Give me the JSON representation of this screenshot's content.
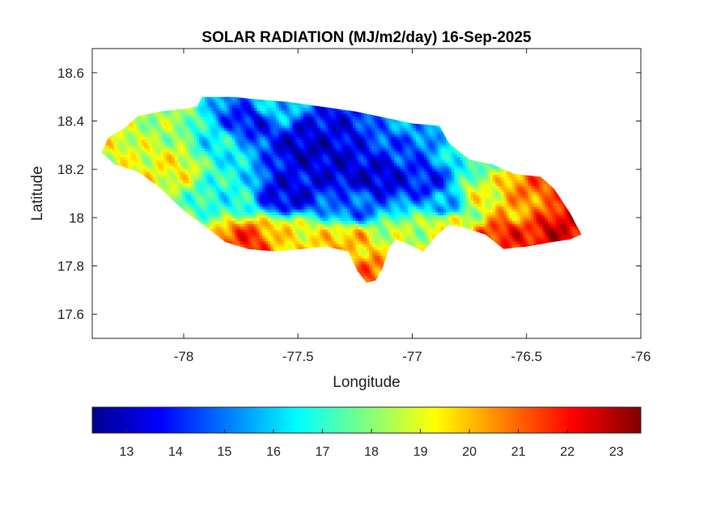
{
  "chart_data": {
    "type": "heatmap",
    "title": "SOLAR RADIATION (MJ/m2/day) 16-Sep-2025",
    "xlabel": "Longitude",
    "ylabel": "Latitude",
    "xlim": [
      -78.4,
      -76
    ],
    "ylim": [
      17.5,
      18.7
    ],
    "x_ticks": [
      -78,
      -77.5,
      -77,
      -76.5,
      -76
    ],
    "x_tick_labels": [
      "-78",
      "-77.5",
      "-77",
      "-76.5",
      "-76"
    ],
    "y_ticks": [
      17.6,
      17.8,
      18,
      18.2,
      18.4,
      18.6
    ],
    "y_tick_labels": [
      "17.6",
      "17.8",
      "18",
      "18.2",
      "18.4",
      "18.6"
    ],
    "colormap": "jet",
    "colorbar": {
      "orientation": "horizontal",
      "location": "bottom",
      "range": [
        12.3,
        23.5
      ],
      "ticks": [
        13,
        14,
        15,
        16,
        17,
        18,
        19,
        20,
        21,
        22,
        23
      ],
      "tick_labels": [
        "13",
        "14",
        "15",
        "16",
        "17",
        "18",
        "19",
        "20",
        "21",
        "22",
        "23"
      ]
    },
    "outline_lonlat": [
      [
        -78.36,
        18.27
      ],
      [
        -78.33,
        18.33
      ],
      [
        -78.26,
        18.37
      ],
      [
        -78.2,
        18.42
      ],
      [
        -78.1,
        18.44
      ],
      [
        -78.0,
        18.45
      ],
      [
        -77.94,
        18.46
      ],
      [
        -77.92,
        18.5
      ],
      [
        -77.78,
        18.5
      ],
      [
        -77.68,
        18.49
      ],
      [
        -77.55,
        18.48
      ],
      [
        -77.4,
        18.46
      ],
      [
        -77.25,
        18.44
      ],
      [
        -77.1,
        18.41
      ],
      [
        -77.0,
        18.39
      ],
      [
        -76.88,
        18.38
      ],
      [
        -76.84,
        18.31
      ],
      [
        -76.75,
        18.24
      ],
      [
        -76.65,
        18.22
      ],
      [
        -76.55,
        18.18
      ],
      [
        -76.44,
        18.17
      ],
      [
        -76.38,
        18.12
      ],
      [
        -76.31,
        18.02
      ],
      [
        -76.26,
        17.93
      ],
      [
        -76.31,
        17.91
      ],
      [
        -76.38,
        17.9
      ],
      [
        -76.5,
        17.88
      ],
      [
        -76.6,
        17.87
      ],
      [
        -76.68,
        17.93
      ],
      [
        -76.78,
        17.96
      ],
      [
        -76.84,
        17.97
      ],
      [
        -76.9,
        17.92
      ],
      [
        -76.95,
        17.86
      ],
      [
        -77.02,
        17.89
      ],
      [
        -77.07,
        17.91
      ],
      [
        -77.1,
        17.88
      ],
      [
        -77.13,
        17.79
      ],
      [
        -77.16,
        17.74
      ],
      [
        -77.2,
        17.73
      ],
      [
        -77.24,
        17.78
      ],
      [
        -77.28,
        17.86
      ],
      [
        -77.38,
        17.88
      ],
      [
        -77.48,
        17.87
      ],
      [
        -77.6,
        17.86
      ],
      [
        -77.72,
        17.87
      ],
      [
        -77.82,
        17.9
      ],
      [
        -77.9,
        17.96
      ],
      [
        -78.0,
        18.03
      ],
      [
        -78.1,
        18.12
      ],
      [
        -78.2,
        18.19
      ],
      [
        -78.3,
        18.22
      ],
      [
        -78.36,
        18.27
      ]
    ],
    "anchor_points": [
      [
        -77.45,
        18.3,
        13.0
      ],
      [
        -77.3,
        18.2,
        13.3
      ],
      [
        -77.55,
        18.1,
        13.4
      ],
      [
        -77.7,
        18.4,
        13.8
      ],
      [
        -77.15,
        18.17,
        13.2
      ],
      [
        -76.95,
        18.15,
        14.0
      ],
      [
        -77.05,
        18.3,
        14.5
      ],
      [
        -76.85,
        18.05,
        15.5
      ],
      [
        -77.25,
        18.05,
        14.8
      ],
      [
        -77.4,
        18.35,
        13.5
      ],
      [
        -77.85,
        18.3,
        16.5
      ],
      [
        -77.8,
        18.1,
        16.8
      ],
      [
        -78.3,
        18.3,
        19.0
      ],
      [
        -78.2,
        18.4,
        18.5
      ],
      [
        -78.05,
        18.22,
        19.2
      ],
      [
        -78.1,
        18.4,
        18.2
      ],
      [
        -77.7,
        17.9,
        21.5
      ],
      [
        -77.55,
        17.92,
        19.5
      ],
      [
        -77.18,
        17.76,
        21.0
      ],
      [
        -77.28,
        17.9,
        20.0
      ],
      [
        -77.05,
        17.92,
        18.5
      ],
      [
        -76.85,
        17.98,
        19.0
      ],
      [
        -76.7,
        18.08,
        19.0
      ],
      [
        -76.35,
        17.95,
        22.5
      ],
      [
        -76.45,
        18.12,
        21.0
      ],
      [
        -76.6,
        17.92,
        21.8
      ],
      [
        -76.55,
        18.05,
        20.2
      ],
      [
        -76.75,
        18.28,
        17.0
      ],
      [
        -77.6,
        18.45,
        16.0
      ],
      [
        -77.0,
        18.38,
        15.5
      ]
    ]
  }
}
